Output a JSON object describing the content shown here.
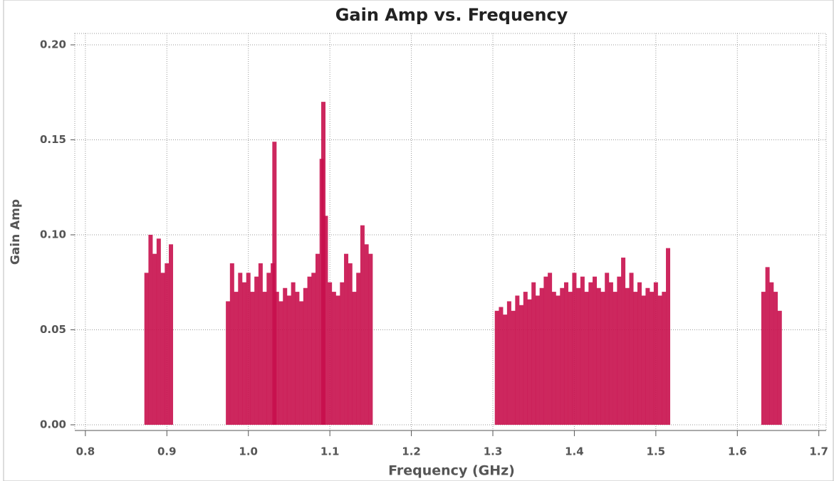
{
  "chart_data": {
    "type": "stem",
    "title": "Gain Amp vs. Frequency",
    "x_label": "Frequency (GHz)",
    "y_label": "Gain Amp",
    "color": "#c8104c",
    "x": [
      0.875,
      0.88,
      0.885,
      0.89,
      0.895,
      0.9,
      0.905,
      0.975,
      0.98,
      0.985,
      0.99,
      0.995,
      1.0,
      1.005,
      1.01,
      1.015,
      1.02,
      1.025,
      1.03,
      1.032,
      1.035,
      1.04,
      1.045,
      1.05,
      1.055,
      1.06,
      1.065,
      1.07,
      1.075,
      1.08,
      1.085,
      1.09,
      1.092,
      1.095,
      1.1,
      1.105,
      1.11,
      1.115,
      1.12,
      1.125,
      1.13,
      1.135,
      1.14,
      1.145,
      1.15,
      1.305,
      1.31,
      1.315,
      1.32,
      1.325,
      1.33,
      1.335,
      1.34,
      1.345,
      1.35,
      1.355,
      1.36,
      1.365,
      1.37,
      1.375,
      1.38,
      1.385,
      1.39,
      1.395,
      1.4,
      1.405,
      1.41,
      1.415,
      1.42,
      1.425,
      1.43,
      1.435,
      1.44,
      1.445,
      1.45,
      1.455,
      1.46,
      1.465,
      1.47,
      1.475,
      1.48,
      1.485,
      1.49,
      1.495,
      1.5,
      1.505,
      1.51,
      1.515,
      1.632,
      1.637,
      1.642,
      1.647,
      1.652
    ],
    "values": [
      0.08,
      0.1,
      0.09,
      0.098,
      0.08,
      0.085,
      0.095,
      0.065,
      0.085,
      0.07,
      0.08,
      0.075,
      0.08,
      0.07,
      0.078,
      0.085,
      0.07,
      0.08,
      0.085,
      0.149,
      0.07,
      0.065,
      0.072,
      0.068,
      0.075,
      0.07,
      0.065,
      0.072,
      0.078,
      0.08,
      0.09,
      0.14,
      0.17,
      0.11,
      0.075,
      0.07,
      0.068,
      0.075,
      0.09,
      0.085,
      0.07,
      0.08,
      0.105,
      0.095,
      0.09,
      0.06,
      0.062,
      0.058,
      0.065,
      0.06,
      0.068,
      0.063,
      0.07,
      0.066,
      0.075,
      0.068,
      0.072,
      0.078,
      0.08,
      0.07,
      0.068,
      0.072,
      0.075,
      0.07,
      0.08,
      0.072,
      0.078,
      0.07,
      0.075,
      0.078,
      0.072,
      0.07,
      0.08,
      0.075,
      0.07,
      0.078,
      0.088,
      0.072,
      0.08,
      0.07,
      0.075,
      0.068,
      0.072,
      0.07,
      0.075,
      0.068,
      0.07,
      0.093,
      0.07,
      0.083,
      0.075,
      0.07,
      0.06
    ],
    "xlim": [
      0.787,
      1.709
    ],
    "ylim": [
      -0.003,
      0.206
    ],
    "xticks": [
      0.8,
      0.9,
      {
        "value": 1.0,
        "label": "1.0"
      },
      1.1,
      1.2,
      1.3,
      1.4,
      1.5,
      1.6,
      1.7
    ],
    "yticks": [
      {
        "value": 0.0,
        "label": "0.00"
      },
      {
        "value": 0.05,
        "label": "0.05"
      },
      {
        "value": 0.1,
        "label": "0.10"
      },
      {
        "value": 0.15,
        "label": "0.15"
      },
      {
        "value": 0.2,
        "label": "0.20"
      }
    ],
    "grid": true
  }
}
